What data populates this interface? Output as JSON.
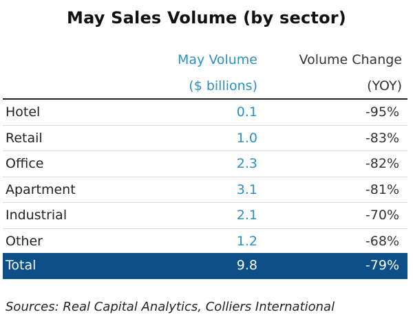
{
  "chart_data": {
    "type": "table",
    "title": "May Sales Volume (by sector)",
    "columns": [
      {
        "header_line1": "May Volume",
        "header_line2": "($ billions)"
      },
      {
        "header_line1": "Volume Change",
        "header_line2": "(YOY)"
      }
    ],
    "rows": [
      {
        "sector": "Hotel",
        "volume": "0.1",
        "change": "-95%"
      },
      {
        "sector": "Retail",
        "volume": "1.0",
        "change": "-83%"
      },
      {
        "sector": "Office",
        "volume": "2.3",
        "change": "-82%"
      },
      {
        "sector": "Apartment",
        "volume": "3.1",
        "change": "-81%"
      },
      {
        "sector": "Industrial",
        "volume": "2.1",
        "change": "-70%"
      },
      {
        "sector": "Other",
        "volume": "1.2",
        "change": "-68%"
      }
    ],
    "total": {
      "sector": "Total",
      "volume": "9.8",
      "change": "-79%"
    },
    "source": "Sources: Real Capital Analytics, Colliers International"
  },
  "colors": {
    "accent_blue": "#2a8fc7",
    "total_row_bg": "#0d4f86",
    "total_row_text": "#ffffff"
  }
}
